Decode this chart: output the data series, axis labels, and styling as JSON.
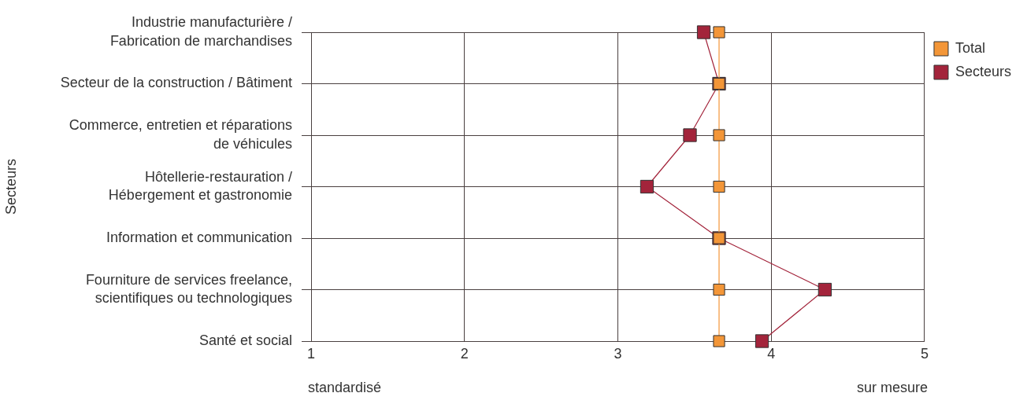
{
  "chart_data": {
    "type": "line",
    "orientation": "horizontal",
    "ylabel": "Secteurs",
    "categories": [
      "Industrie manufacturière /\nFabrication de marchandises",
      "Secteur de la construction / Bâtiment",
      "Commerce, entretien et réparations\nde véhicules",
      "Hôtellerie-restauration /\nHébergement et gastronomie",
      "Information et communication",
      "Fourniture de services freelance,\nscientifiques ou technologiques",
      "Santé et social"
    ],
    "series": [
      {
        "name": "Secteurs",
        "color": "#a3243b",
        "values": [
          3.56,
          3.66,
          3.47,
          3.19,
          3.66,
          4.35,
          3.94
        ]
      },
      {
        "name": "Total",
        "color": "#f39638",
        "values": [
          3.66,
          3.66,
          3.66,
          3.66,
          3.66,
          3.66,
          3.66
        ]
      }
    ],
    "xlim": [
      1,
      5
    ],
    "xticks": [
      1,
      2,
      3,
      4,
      5
    ],
    "grid": true,
    "legend": "top right",
    "marker": "square",
    "annotations": [
      "standardisé",
      "sur mesure"
    ]
  }
}
